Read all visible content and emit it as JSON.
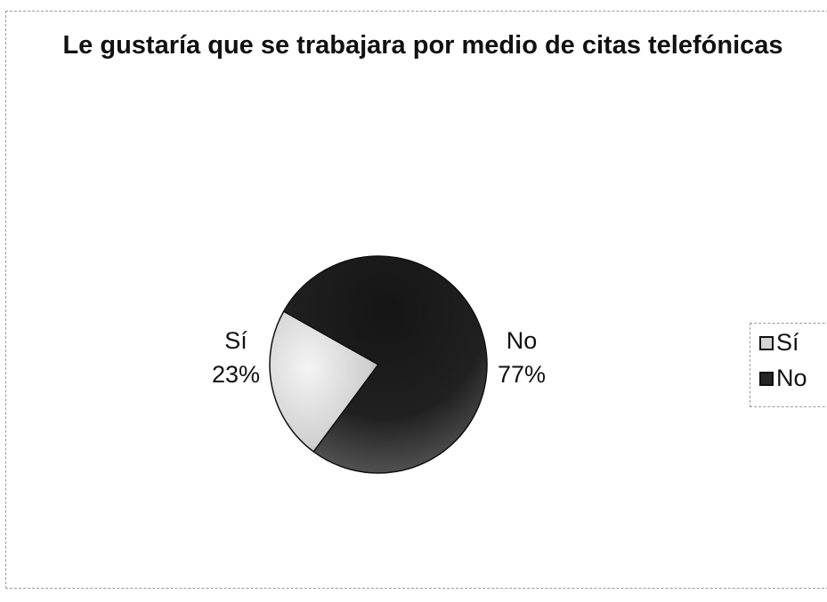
{
  "chart_data": {
    "type": "pie",
    "title": "Le gustaría que se trabajara por medio de citas telefónicas",
    "categories": [
      "Sí",
      "No"
    ],
    "values": [
      23,
      77
    ],
    "labels": [
      "23%",
      "77%"
    ],
    "legend_position": "right",
    "colors": {
      "Sí": "#d9d9d9",
      "No": "#1a1a1a"
    }
  }
}
